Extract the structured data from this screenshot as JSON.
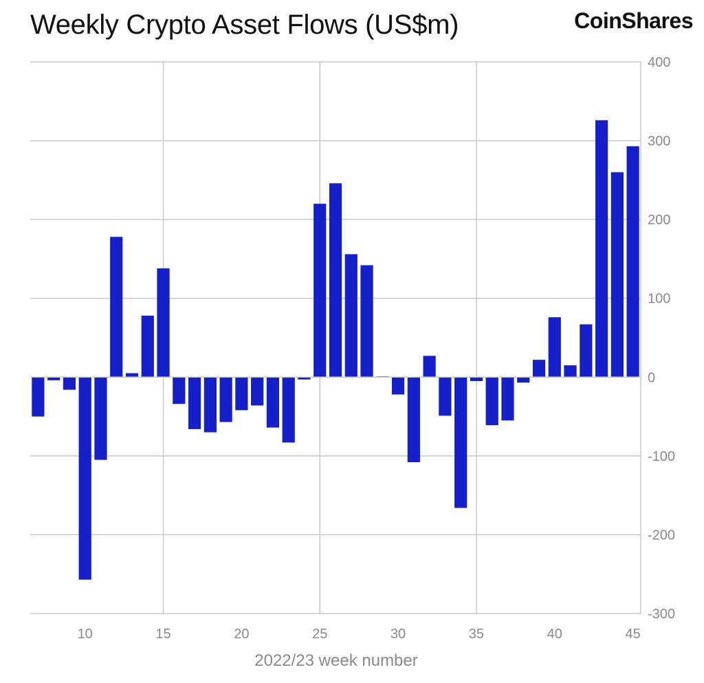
{
  "header": {
    "title": "Weekly Crypto Asset Flows (US$m)",
    "brand": "CoinShares"
  },
  "colors": {
    "bar": "#1520c9",
    "grid": "#c8c8c8",
    "axis_text": "#8a8a8a"
  },
  "chart_data": {
    "type": "bar",
    "title": "Weekly Crypto Asset Flows (US$m)",
    "xlabel": "2022/23 week number",
    "ylabel": "",
    "ylim": [
      -300,
      400
    ],
    "xlim": [
      6.5,
      45.5
    ],
    "x_ticks": [
      10,
      15,
      20,
      25,
      30,
      35,
      40,
      45
    ],
    "x_gridlines": [
      15,
      25,
      35
    ],
    "y_ticks": [
      400,
      300,
      200,
      100,
      0,
      -100,
      -200,
      -300
    ],
    "y_tick_labels": [
      "400",
      "300",
      "200",
      "100",
      "0",
      "-100",
      "-200",
      "-300"
    ],
    "y_axis_side": "right",
    "grid": true,
    "categories": [
      7,
      8,
      9,
      10,
      11,
      12,
      13,
      14,
      15,
      16,
      17,
      18,
      19,
      20,
      21,
      22,
      23,
      24,
      25,
      26,
      27,
      28,
      29,
      30,
      31,
      32,
      33,
      34,
      35,
      36,
      37,
      38,
      39,
      40,
      41,
      42,
      43,
      44,
      45
    ],
    "values": [
      -50,
      -4,
      -16,
      -257,
      -105,
      178,
      5,
      78,
      138,
      -34,
      -66,
      -70,
      -57,
      -42,
      -36,
      -64,
      -83,
      -3,
      220,
      246,
      156,
      142,
      1,
      -22,
      -108,
      27,
      -49,
      -166,
      -5,
      -61,
      -55,
      -7,
      22,
      76,
      15,
      67,
      326,
      260,
      293
    ]
  }
}
